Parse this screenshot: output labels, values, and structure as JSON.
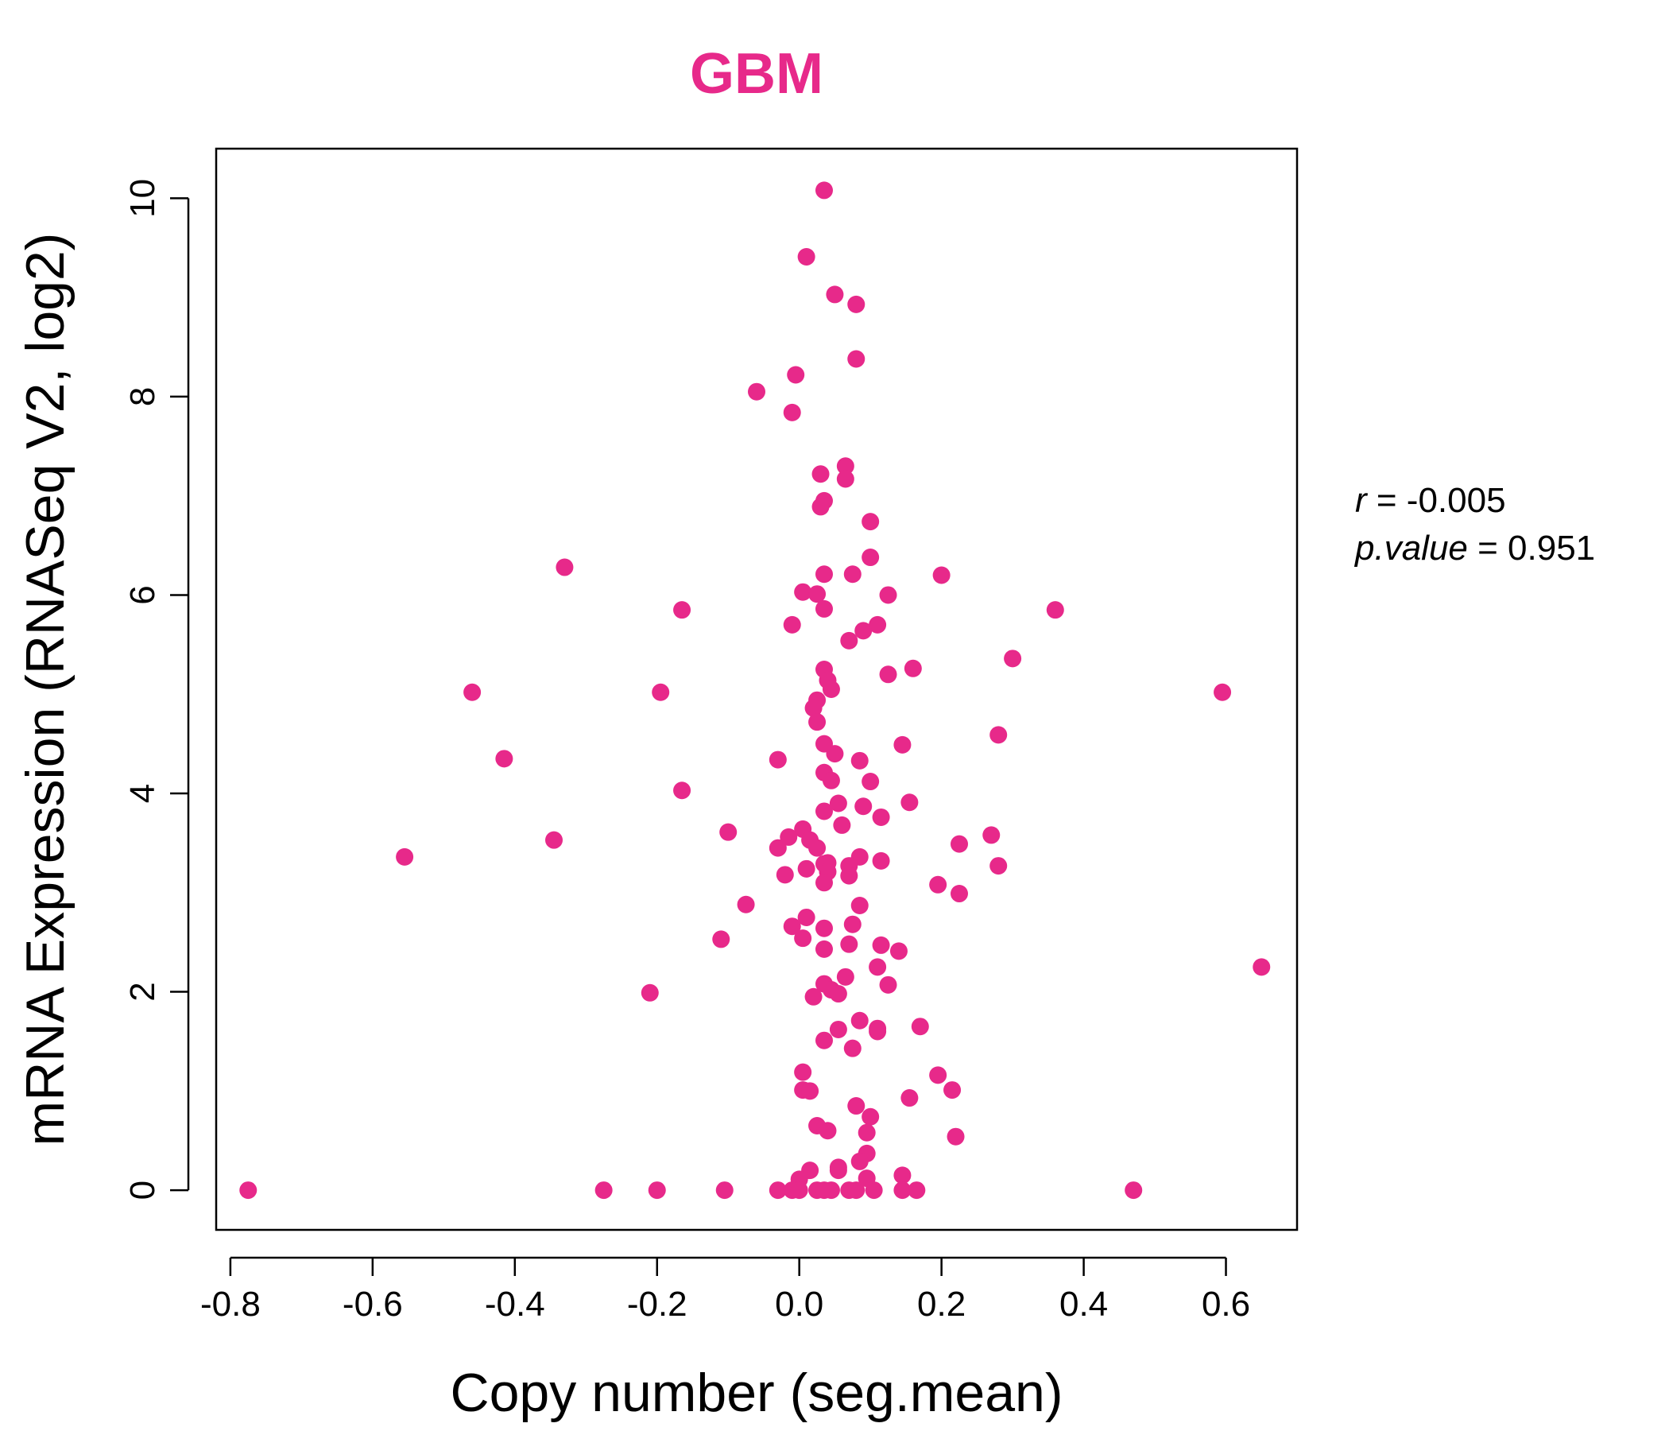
{
  "chart_data": {
    "type": "scatter",
    "title": "GBM",
    "xlabel": "Copy number (seg.mean)",
    "ylabel": "mRNA Expression (RNASeq V2, log2)",
    "xlim": [
      -0.82,
      0.7
    ],
    "ylim": [
      -0.4,
      10.5
    ],
    "x_ticks": [
      -0.8,
      -0.6,
      -0.4,
      -0.2,
      0.0,
      0.2,
      0.4,
      0.6
    ],
    "x_tick_labels": [
      "-0.8",
      "-0.6",
      "-0.4",
      "-0.2",
      "0.0",
      "0.2",
      "0.4",
      "0.6"
    ],
    "y_ticks": [
      0,
      2,
      4,
      6,
      8,
      10
    ],
    "y_tick_labels": [
      "0",
      "2",
      "4",
      "6",
      "8",
      "10"
    ],
    "point_color": "#e7298a",
    "grid": false,
    "points": [
      [
        0.035,
        10.08
      ],
      [
        0.01,
        9.41
      ],
      [
        0.05,
        9.03
      ],
      [
        0.08,
        8.93
      ],
      [
        0.08,
        8.38
      ],
      [
        -0.005,
        8.22
      ],
      [
        -0.06,
        8.05
      ],
      [
        -0.01,
        7.84
      ],
      [
        0.065,
        7.3
      ],
      [
        0.03,
        7.22
      ],
      [
        0.065,
        7.17
      ],
      [
        0.035,
        6.95
      ],
      [
        0.03,
        6.89
      ],
      [
        0.1,
        6.74
      ],
      [
        0.1,
        6.38
      ],
      [
        -0.33,
        6.28
      ],
      [
        0.035,
        6.21
      ],
      [
        0.075,
        6.21
      ],
      [
        0.2,
        6.2
      ],
      [
        0.005,
        6.03
      ],
      [
        0.025,
        6.01
      ],
      [
        0.125,
        6.0
      ],
      [
        -0.165,
        5.85
      ],
      [
        0.035,
        5.86
      ],
      [
        0.36,
        5.85
      ],
      [
        -0.01,
        5.7
      ],
      [
        0.11,
        5.7
      ],
      [
        0.09,
        5.64
      ],
      [
        0.07,
        5.54
      ],
      [
        0.3,
        5.36
      ],
      [
        0.035,
        5.25
      ],
      [
        0.16,
        5.26
      ],
      [
        0.125,
        5.2
      ],
      [
        0.04,
        5.14
      ],
      [
        0.045,
        5.05
      ],
      [
        -0.46,
        5.02
      ],
      [
        -0.195,
        5.02
      ],
      [
        0.595,
        5.02
      ],
      [
        0.025,
        4.94
      ],
      [
        0.02,
        4.86
      ],
      [
        0.025,
        4.72
      ],
      [
        0.28,
        4.59
      ],
      [
        0.035,
        4.5
      ],
      [
        0.145,
        4.49
      ],
      [
        0.05,
        4.4
      ],
      [
        -0.415,
        4.35
      ],
      [
        -0.03,
        4.34
      ],
      [
        0.085,
        4.33
      ],
      [
        0.035,
        4.21
      ],
      [
        0.045,
        4.13
      ],
      [
        0.1,
        4.12
      ],
      [
        -0.165,
        4.03
      ],
      [
        0.155,
        3.91
      ],
      [
        0.055,
        3.9
      ],
      [
        0.09,
        3.87
      ],
      [
        0.035,
        3.82
      ],
      [
        0.115,
        3.76
      ],
      [
        0.06,
        3.68
      ],
      [
        0.005,
        3.64
      ],
      [
        -0.1,
        3.61
      ],
      [
        0.27,
        3.58
      ],
      [
        -0.015,
        3.56
      ],
      [
        -0.345,
        3.53
      ],
      [
        0.015,
        3.53
      ],
      [
        0.225,
        3.49
      ],
      [
        -0.03,
        3.45
      ],
      [
        0.025,
        3.45
      ],
      [
        -0.555,
        3.36
      ],
      [
        0.085,
        3.36
      ],
      [
        0.04,
        3.3
      ],
      [
        0.115,
        3.32
      ],
      [
        0.035,
        3.29
      ],
      [
        0.07,
        3.27
      ],
      [
        0.28,
        3.27
      ],
      [
        0.01,
        3.24
      ],
      [
        0.04,
        3.21
      ],
      [
        -0.02,
        3.18
      ],
      [
        0.07,
        3.17
      ],
      [
        0.035,
        3.1
      ],
      [
        0.195,
        3.08
      ],
      [
        0.225,
        2.99
      ],
      [
        -0.075,
        2.88
      ],
      [
        0.085,
        2.87
      ],
      [
        0.01,
        2.75
      ],
      [
        0.075,
        2.68
      ],
      [
        -0.01,
        2.66
      ],
      [
        0.035,
        2.64
      ],
      [
        0.005,
        2.54
      ],
      [
        -0.11,
        2.53
      ],
      [
        0.07,
        2.48
      ],
      [
        0.115,
        2.47
      ],
      [
        0.035,
        2.43
      ],
      [
        0.14,
        2.41
      ],
      [
        0.11,
        2.25
      ],
      [
        0.65,
        2.25
      ],
      [
        0.065,
        2.15
      ],
      [
        0.125,
        2.07
      ],
      [
        0.035,
        2.08
      ],
      [
        0.045,
        2.02
      ],
      [
        0.055,
        1.98
      ],
      [
        -0.21,
        1.99
      ],
      [
        0.02,
        1.95
      ],
      [
        0.085,
        1.71
      ],
      [
        0.17,
        1.65
      ],
      [
        0.055,
        1.62
      ],
      [
        0.11,
        1.63
      ],
      [
        0.11,
        1.6
      ],
      [
        0.035,
        1.51
      ],
      [
        0.075,
        1.43
      ],
      [
        0.005,
        1.19
      ],
      [
        0.195,
        1.16
      ],
      [
        0.005,
        1.01
      ],
      [
        0.015,
        1.0
      ],
      [
        0.215,
        1.01
      ],
      [
        0.155,
        0.93
      ],
      [
        0.08,
        0.85
      ],
      [
        0.1,
        0.74
      ],
      [
        0.025,
        0.65
      ],
      [
        0.04,
        0.6
      ],
      [
        0.095,
        0.58
      ],
      [
        0.22,
        0.54
      ],
      [
        0.095,
        0.37
      ],
      [
        0.085,
        0.29
      ],
      [
        0.055,
        0.23
      ],
      [
        0.055,
        0.2
      ],
      [
        0.015,
        0.2
      ],
      [
        0.145,
        0.15
      ],
      [
        0.095,
        0.12
      ],
      [
        0.0,
        0.11
      ],
      [
        -0.775,
        0.0
      ],
      [
        -0.275,
        0.0
      ],
      [
        -0.2,
        0.0
      ],
      [
        -0.105,
        0.0
      ],
      [
        -0.03,
        0.0
      ],
      [
        -0.01,
        0.0
      ],
      [
        0.0,
        0.0
      ],
      [
        0.025,
        0.0
      ],
      [
        0.035,
        0.0
      ],
      [
        0.045,
        0.0
      ],
      [
        0.07,
        0.0
      ],
      [
        0.08,
        0.0
      ],
      [
        0.105,
        0.0
      ],
      [
        0.145,
        0.0
      ],
      [
        0.165,
        0.0
      ],
      [
        0.47,
        0.0
      ]
    ]
  },
  "stats": {
    "r_label": "r",
    "r_eq": " = -0.005",
    "p_label": "p.value",
    "p_eq": " = 0.951"
  }
}
